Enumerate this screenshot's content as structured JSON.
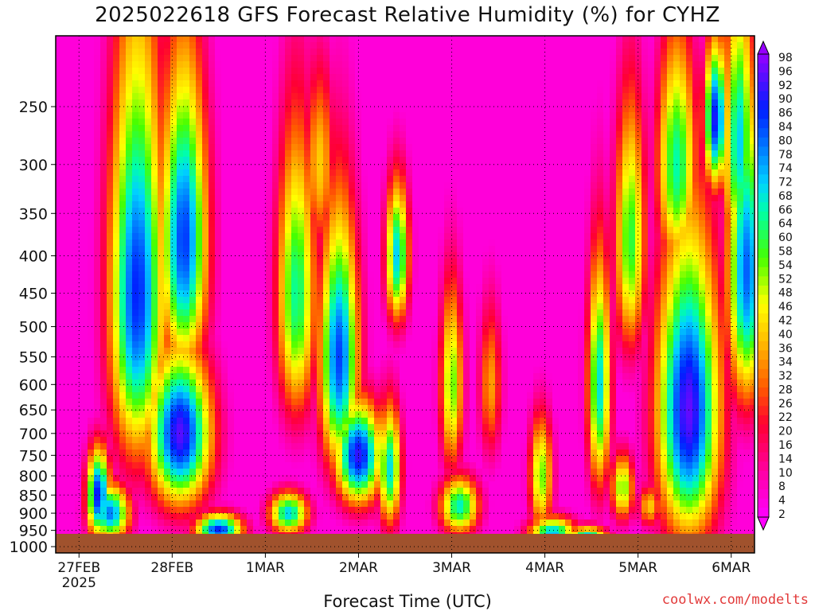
{
  "chart_data": {
    "type": "heatmap",
    "title": "2025022618 GFS Forecast Relative Humidity (%) for CYHZ",
    "xlabel": "Forecast Time (UTC)",
    "ylabel": "",
    "credit": "coolwx.com/modelts",
    "x_ticks": [
      {
        "label": "27FEB",
        "sub": "2025",
        "hour": 6
      },
      {
        "label": "28FEB",
        "hour": 30
      },
      {
        "label": "1MAR",
        "hour": 54
      },
      {
        "label": "2MAR",
        "hour": 78
      },
      {
        "label": "3MAR",
        "hour": 102
      },
      {
        "label": "4MAR",
        "hour": 126
      },
      {
        "label": "5MAR",
        "hour": 150
      },
      {
        "label": "6MAR",
        "hour": 174
      }
    ],
    "x_range_hours": [
      0,
      180
    ],
    "y_ticks": [
      250,
      300,
      350,
      400,
      450,
      500,
      550,
      600,
      650,
      700,
      750,
      800,
      850,
      900,
      950,
      1000
    ],
    "y_range_hpa": [
      200,
      1020
    ],
    "y_scale": "log",
    "colorbar": {
      "labels": [
        98,
        96,
        92,
        90,
        86,
        84,
        80,
        78,
        74,
        72,
        68,
        66,
        64,
        60,
        58,
        54,
        52,
        48,
        46,
        42,
        40,
        36,
        34,
        32,
        28,
        26,
        22,
        20,
        16,
        14,
        10,
        8,
        4,
        2
      ],
      "range": [
        0,
        100
      ]
    },
    "blobs": [
      {
        "t": 21,
        "p": 450,
        "st": 7,
        "sp": 280,
        "v": 88
      },
      {
        "t": 33,
        "p": 380,
        "st": 6,
        "sp": 180,
        "v": 86
      },
      {
        "t": 32,
        "p": 700,
        "st": 8,
        "sp": 170,
        "v": 95
      },
      {
        "t": 11,
        "p": 850,
        "st": 3,
        "sp": 120,
        "v": 90
      },
      {
        "t": 14,
        "p": 900,
        "st": 5,
        "sp": 80,
        "v": 80
      },
      {
        "t": 62,
        "p": 450,
        "st": 5,
        "sp": 200,
        "v": 65
      },
      {
        "t": 73,
        "p": 550,
        "st": 5,
        "sp": 220,
        "v": 85
      },
      {
        "t": 78,
        "p": 750,
        "st": 6,
        "sp": 120,
        "v": 92
      },
      {
        "t": 68,
        "p": 300,
        "st": 4,
        "sp": 90,
        "v": 40
      },
      {
        "t": 88,
        "p": 400,
        "st": 3,
        "sp": 90,
        "v": 72
      },
      {
        "t": 86,
        "p": 780,
        "st": 3,
        "sp": 150,
        "v": 70
      },
      {
        "t": 60,
        "p": 900,
        "st": 5,
        "sp": 60,
        "v": 72
      },
      {
        "t": 42,
        "p": 950,
        "st": 6,
        "sp": 50,
        "v": 88
      },
      {
        "t": 102,
        "p": 600,
        "st": 3,
        "sp": 180,
        "v": 55
      },
      {
        "t": 104,
        "p": 880,
        "st": 5,
        "sp": 80,
        "v": 68
      },
      {
        "t": 112,
        "p": 600,
        "st": 3,
        "sp": 150,
        "v": 35
      },
      {
        "t": 125,
        "p": 800,
        "st": 3,
        "sp": 150,
        "v": 55
      },
      {
        "t": 128,
        "p": 960,
        "st": 6,
        "sp": 50,
        "v": 75
      },
      {
        "t": 140,
        "p": 600,
        "st": 3,
        "sp": 220,
        "v": 70
      },
      {
        "t": 146,
        "p": 830,
        "st": 3,
        "sp": 90,
        "v": 55
      },
      {
        "t": 153,
        "p": 880,
        "st": 3,
        "sp": 60,
        "v": 40
      },
      {
        "t": 163,
        "p": 650,
        "st": 8,
        "sp": 300,
        "v": 96
      },
      {
        "t": 160,
        "p": 300,
        "st": 5,
        "sp": 110,
        "v": 66
      },
      {
        "t": 148,
        "p": 380,
        "st": 4,
        "sp": 150,
        "v": 60
      },
      {
        "t": 176,
        "p": 280,
        "st": 4,
        "sp": 120,
        "v": 72
      },
      {
        "t": 170,
        "p": 260,
        "st": 3,
        "sp": 60,
        "v": 90
      },
      {
        "t": 178,
        "p": 420,
        "st": 5,
        "sp": 200,
        "v": 82
      },
      {
        "t": 137,
        "p": 980,
        "st": 5,
        "sp": 40,
        "v": 80
      }
    ]
  },
  "colors": {
    "background": "#ffffff",
    "terrain": "#a0522d",
    "grid": "#000000",
    "credit": "#e23a3a"
  }
}
